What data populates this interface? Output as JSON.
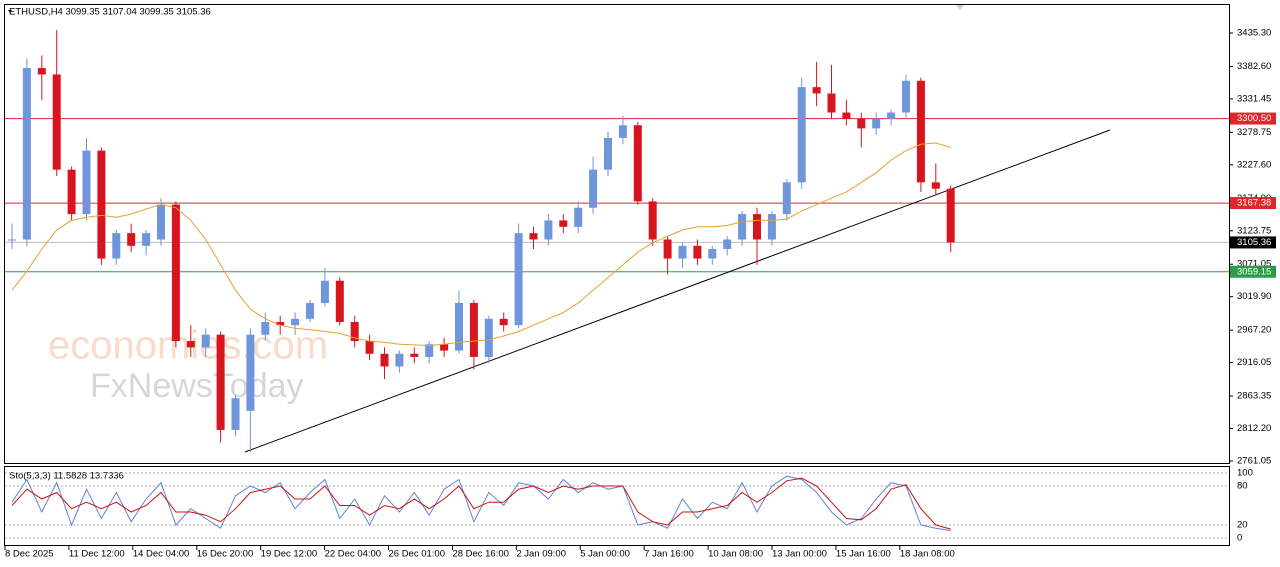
{
  "chart_data": {
    "type": "candlestick",
    "header": "ETHUSD,H4 3099.35 3107.04 3099.35 3105.36",
    "indicator_label": "Sto(5,3,3) 11.5828 13.7336",
    "watermark": [
      "economies.com",
      "FxNewsToday"
    ],
    "up_color": "#6f95da",
    "down_color": "#d8141e",
    "ylim": [
      2757.9,
      3479.4
    ],
    "yticks": [
      {
        "value": 3435.3,
        "label": "3435.30"
      },
      {
        "value": 3382.6,
        "label": "3382.60"
      },
      3331.45,
      3278.75,
      {
        "value": 3227.6,
        "label": "3227.60"
      },
      {
        "value": 3174.9,
        "label": "3174.90"
      },
      3123.75,
      3071.05,
      {
        "value": 3019.9,
        "label": "3019.90"
      },
      {
        "value": 2967.2,
        "label": "2967.20"
      },
      2916.05,
      2863.35,
      {
        "value": 2812.2,
        "label": "2812.20"
      },
      2761.05
    ],
    "levels": [
      {
        "value": 3300.5,
        "label": "3300.50",
        "color": "#e0252b"
      },
      {
        "value": 3167.38,
        "label": "3167.38",
        "color": "#e0252b"
      },
      {
        "value": 3105.36,
        "label": "3105.36",
        "color": "#000000"
      },
      {
        "value": 3059.15,
        "label": "3059.15",
        "color": "#2e9d4a"
      }
    ],
    "x_labels": [
      "8 Dec 2025",
      "11 Dec 12:00",
      "14 Dec 04:00",
      "16 Dec 20:00",
      "19 Dec 12:00",
      "22 Dec 04:00",
      "26 Dec 01:00",
      "28 Dec 16:00",
      "2 Jan 09:00",
      "5 Jan 00:00",
      "7 Jan 16:00",
      "10 Jan 08:00",
      "13 Jan 00:00",
      "15 Jan 16:00",
      "18 Jan 08:00"
    ],
    "candles": {
      "open": [
        3110,
        3110,
        3380,
        3370,
        3220,
        3150,
        3250,
        3080,
        3120,
        3100,
        3110,
        3165,
        2950,
        2940,
        2960,
        2810,
        2840,
        2960,
        2980,
        2975,
        2985,
        3010,
        3045,
        2980,
        2950,
        2930,
        2910,
        2930,
        2925,
        2945,
        2935,
        3010,
        2925,
        2985,
        2975,
        3120,
        3110,
        3140,
        3130,
        3160,
        3220,
        3270,
        3290,
        3170,
        3110,
        3080,
        3100,
        3080,
        3095,
        3110,
        3150,
        3110,
        3150,
        3200,
        3350,
        3340,
        3310,
        3300,
        3285,
        3300,
        3310,
        3360,
        3200,
        3190
      ],
      "high": [
        3135,
        3395,
        3400,
        3440,
        3225,
        3270,
        3255,
        3125,
        3135,
        3125,
        3175,
        3170,
        2975,
        2970,
        2965,
        2865,
        2970,
        2995,
        2990,
        2995,
        3015,
        3065,
        3050,
        2990,
        2960,
        2940,
        2935,
        2940,
        2950,
        2955,
        3030,
        3015,
        2990,
        2995,
        3135,
        3130,
        3150,
        3150,
        3170,
        3240,
        3280,
        3305,
        3295,
        3175,
        3115,
        3105,
        3110,
        3100,
        3115,
        3155,
        3160,
        3155,
        3205,
        3365,
        3390,
        3385,
        3330,
        3310,
        3310,
        3315,
        3370,
        3365,
        3230,
        3195
      ],
      "low": [
        3095,
        3100,
        3330,
        3210,
        3140,
        3140,
        3070,
        3070,
        3090,
        3085,
        3100,
        2940,
        2925,
        2925,
        2790,
        2800,
        2775,
        2950,
        2960,
        2960,
        2980,
        3005,
        2975,
        2940,
        2920,
        2890,
        2900,
        2915,
        2915,
        2925,
        2930,
        2905,
        2915,
        2965,
        2970,
        3095,
        3100,
        3120,
        3120,
        3150,
        3210,
        3260,
        3165,
        3100,
        3055,
        3065,
        3070,
        3070,
        3085,
        3100,
        3070,
        3100,
        3140,
        3190,
        3320,
        3300,
        3290,
        3255,
        3275,
        3290,
        3300,
        3185,
        3180,
        3090
      ],
      "close": [
        3110,
        3380,
        3370,
        3220,
        3150,
        3250,
        3080,
        3120,
        3100,
        3120,
        3165,
        2950,
        2940,
        2960,
        2810,
        2860,
        2960,
        2980,
        2975,
        2985,
        3010,
        3045,
        2980,
        2950,
        2930,
        2910,
        2930,
        2925,
        2945,
        2935,
        3010,
        2925,
        2985,
        2975,
        3120,
        3110,
        3140,
        3130,
        3160,
        3220,
        3270,
        3290,
        3170,
        3110,
        3080,
        3100,
        3080,
        3095,
        3110,
        3150,
        3110,
        3150,
        3200,
        3350,
        3340,
        3310,
        3300,
        3285,
        3300,
        3310,
        3360,
        3200,
        3190,
        3105.36
      ]
    },
    "ma": {
      "color": "#e8a030",
      "values": [
        3030,
        3060,
        3095,
        3125,
        3140,
        3145,
        3148,
        3145,
        3150,
        3158,
        3165,
        3160,
        3140,
        3110,
        3070,
        3030,
        3000,
        2985,
        2975,
        2970,
        2968,
        2965,
        2962,
        2955,
        2950,
        2948,
        2945,
        2944,
        2943,
        2945,
        2948,
        2950,
        2952,
        2958,
        2965,
        2975,
        2985,
        2995,
        3010,
        3030,
        3050,
        3070,
        3090,
        3105,
        3115,
        3125,
        3130,
        3130,
        3132,
        3138,
        3140,
        3140,
        3142,
        3155,
        3165,
        3175,
        3185,
        3200,
        3215,
        3235,
        3250,
        3260,
        3262,
        3255
      ]
    },
    "stochastic": {
      "ylim": [
        -10.8,
        109.2
      ],
      "yticks": [
        0,
        20,
        80,
        100
      ],
      "series": [
        {
          "color": "#5b84d6",
          "values": [
            55,
            90,
            40,
            85,
            20,
            75,
            30,
            70,
            25,
            60,
            85,
            20,
            45,
            30,
            15,
            65,
            80,
            70,
            85,
            45,
            70,
            90,
            30,
            60,
            20,
            65,
            40,
            70,
            35,
            75,
            90,
            25,
            70,
            50,
            85,
            80,
            60,
            90,
            70,
            85,
            75,
            80,
            20,
            25,
            15,
            60,
            30,
            55,
            45,
            85,
            40,
            80,
            95,
            90,
            70,
            40,
            20,
            30,
            60,
            85,
            80,
            20,
            15,
            11.5828
          ]
        },
        {
          "color": "#cc1111",
          "values": [
            50,
            75,
            60,
            70,
            45,
            55,
            45,
            55,
            40,
            50,
            70,
            40,
            40,
            35,
            25,
            45,
            70,
            75,
            80,
            60,
            60,
            80,
            50,
            50,
            35,
            50,
            45,
            60,
            45,
            60,
            80,
            45,
            55,
            55,
            75,
            80,
            70,
            80,
            75,
            80,
            80,
            80,
            40,
            25,
            20,
            40,
            40,
            45,
            50,
            70,
            55,
            70,
            88,
            92,
            80,
            55,
            30,
            28,
            45,
            75,
            82,
            45,
            20,
            13.7336
          ]
        }
      ]
    }
  }
}
